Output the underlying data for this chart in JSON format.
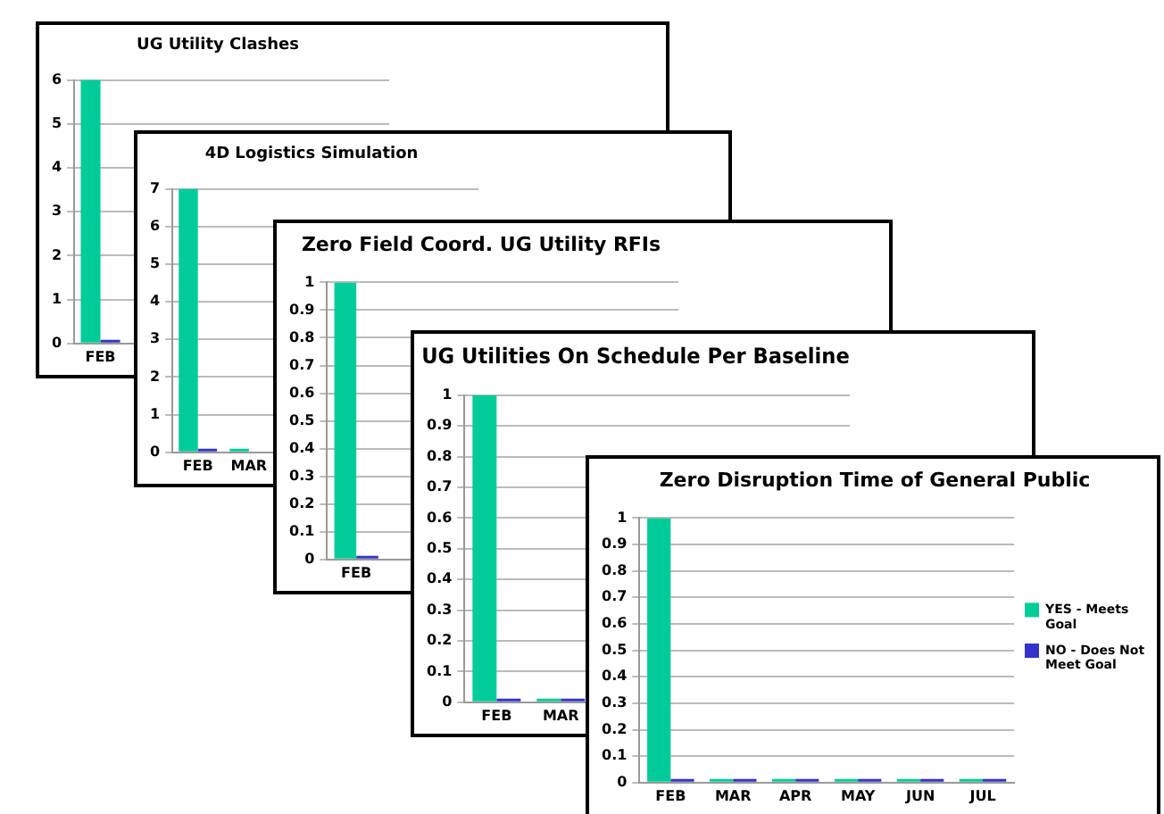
{
  "chart_data": [
    {
      "type": "bar",
      "title": "UG Utility Clashes",
      "categories": [
        "FEB",
        null,
        null,
        null,
        null,
        null
      ],
      "series": [
        {
          "color": "#00cc99",
          "values": [
            6,
            null,
            null,
            null,
            null,
            null
          ]
        },
        {
          "color": "#3333cc",
          "values": [
            0,
            null,
            null,
            null,
            null,
            null
          ]
        }
      ],
      "ylim": [
        0,
        6
      ],
      "yticks": [
        0,
        1,
        2,
        3,
        4,
        5,
        6
      ],
      "grid": "y"
    },
    {
      "type": "bar",
      "title": "4D Logistics Simulation",
      "categories": [
        "FEB",
        "MAR",
        null,
        null,
        null,
        null
      ],
      "series": [
        {
          "color": "#00cc99",
          "values": [
            7,
            0,
            null,
            null,
            null,
            null
          ]
        },
        {
          "color": "#3333cc",
          "values": [
            0,
            null,
            null,
            null,
            null,
            null
          ]
        }
      ],
      "ylim": [
        0,
        7
      ],
      "yticks": [
        0,
        1,
        2,
        3,
        4,
        5,
        6,
        7
      ],
      "grid": "y"
    },
    {
      "type": "bar",
      "title": "Zero Field Coord. UG Utility RFIs",
      "categories": [
        "FEB",
        null,
        null,
        null,
        null,
        null
      ],
      "series": [
        {
          "color": "#00cc99",
          "values": [
            1,
            null,
            null,
            null,
            null,
            null
          ]
        },
        {
          "color": "#3333cc",
          "values": [
            0,
            null,
            null,
            null,
            null,
            null
          ]
        }
      ],
      "ylim": [
        0,
        1
      ],
      "yticks": [
        0,
        0.1,
        0.2,
        0.3,
        0.4,
        0.5,
        0.6,
        0.7,
        0.8,
        0.9,
        1
      ],
      "grid": "y"
    },
    {
      "type": "bar",
      "title": "UG Utilities On Schedule Per Baseline",
      "categories": [
        "FEB",
        "MAR",
        null,
        null,
        null,
        null
      ],
      "series": [
        {
          "color": "#00cc99",
          "values": [
            1,
            0,
            null,
            null,
            null,
            null
          ]
        },
        {
          "color": "#3333cc",
          "values": [
            0,
            0,
            null,
            null,
            null,
            null
          ]
        }
      ],
      "ylim": [
        0,
        1
      ],
      "yticks": [
        0,
        0.1,
        0.2,
        0.3,
        0.4,
        0.5,
        0.6,
        0.7,
        0.8,
        0.9,
        1
      ],
      "grid": "y"
    },
    {
      "type": "bar",
      "title": "Zero Disruption Time of General Public",
      "categories": [
        "FEB",
        "MAR",
        "APR",
        "MAY",
        "JUN",
        "JUL"
      ],
      "series": [
        {
          "name": "YES - Meets Goal",
          "color": "#00cc99",
          "values": [
            1,
            0,
            0,
            0,
            0,
            0
          ]
        },
        {
          "name": "NO - Does Not Meet Goal",
          "color": "#3333cc",
          "values": [
            0,
            0,
            0,
            0,
            0,
            0
          ]
        }
      ],
      "ylim": [
        0,
        1
      ],
      "yticks": [
        0,
        0.1,
        0.2,
        0.3,
        0.4,
        0.5,
        0.6,
        0.7,
        0.8,
        0.9,
        1
      ],
      "grid": "y",
      "legend": "right"
    }
  ]
}
